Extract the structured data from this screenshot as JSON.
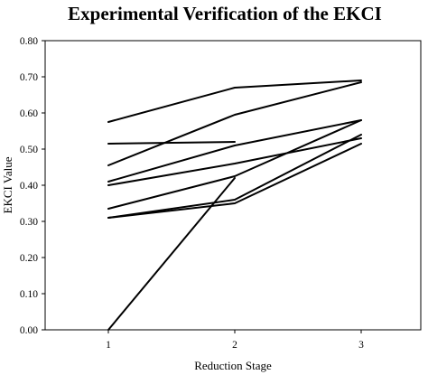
{
  "chart_data": {
    "type": "line",
    "title": "Experimental Verification of the EKCI",
    "xlabel": "Reduction Stage",
    "ylabel": "EKCI Value",
    "categories": [
      "1",
      "2",
      "3"
    ],
    "ylim": [
      0,
      0.8
    ],
    "ytick_labels": [
      "0.00",
      "0.10",
      "0.20",
      "0.30",
      "0.40",
      "0.50",
      "0.60",
      "0.70",
      "0.80"
    ],
    "grid": false,
    "series": [
      {
        "values": [
          0.575,
          0.67,
          0.69
        ]
      },
      {
        "values": [
          0.515,
          0.52,
          null
        ]
      },
      {
        "values": [
          0.455,
          0.595,
          0.685
        ]
      },
      {
        "values": [
          0.41,
          0.51,
          0.58
        ]
      },
      {
        "values": [
          0.4,
          0.46,
          0.53
        ]
      },
      {
        "values": [
          0.335,
          0.425,
          0.58
        ]
      },
      {
        "values": [
          0.31,
          0.36,
          0.54
        ]
      },
      {
        "values": [
          0.31,
          0.35,
          0.515
        ]
      },
      {
        "values": [
          0.0,
          0.42,
          null
        ]
      }
    ]
  }
}
